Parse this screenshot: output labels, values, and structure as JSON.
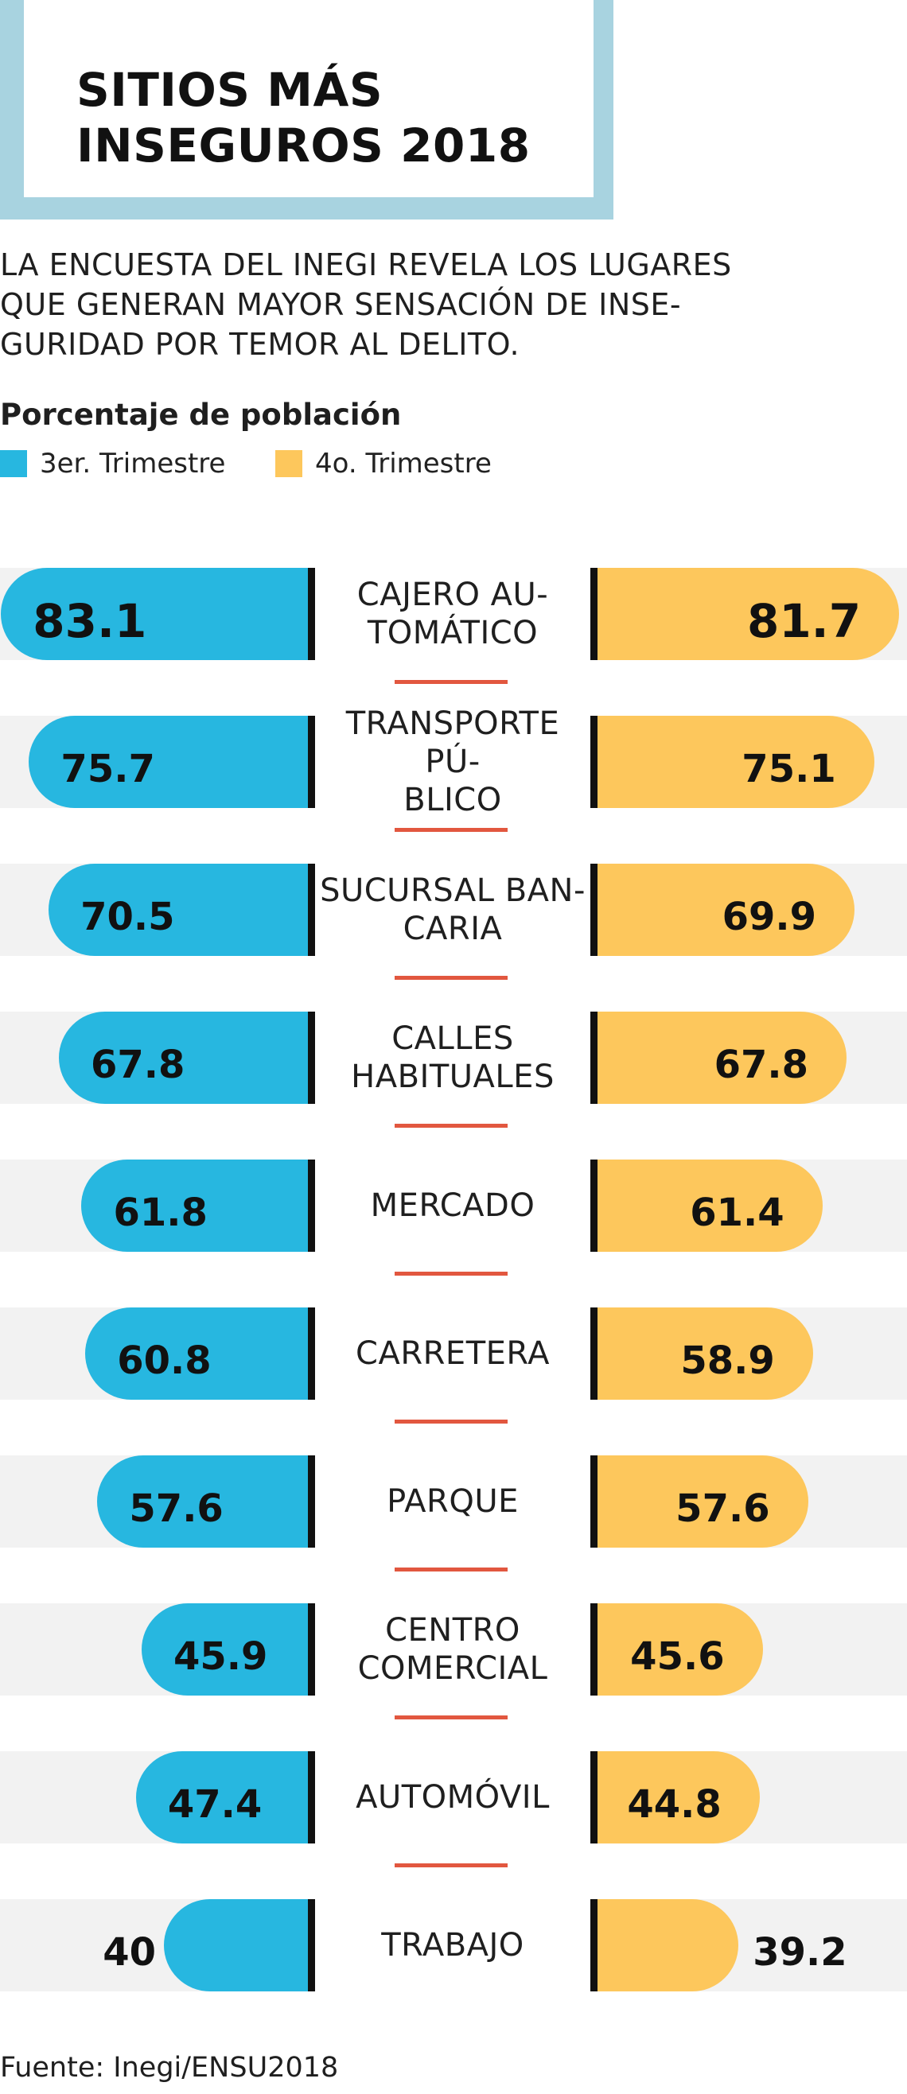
{
  "header": {
    "title": "SITIOS MÁS INSEGUROS 2018",
    "intro": "LA ENCUESTA DEL INEGI REVELA LOS LUGARES\nQUE GENERAN MAYOR SENSACIÓN DE INSE-\nGURIDAD POR TEMOR AL DELITO.",
    "subtitle": "Porcentaje de población"
  },
  "legend": [
    {
      "label": "3er. Trimestre",
      "color": "#27b7e0"
    },
    {
      "label": "4o. Trimestre",
      "color": "#fdc75c"
    }
  ],
  "colors": {
    "q3": "#27b7e0",
    "q4": "#fdc75c",
    "separator": "#e2573f",
    "track": "#f2f2f2",
    "title_frame": "#a8d3e0"
  },
  "source": "Fuente: Inegi/ENSU2018",
  "chart_data": {
    "type": "bar",
    "orientation": "horizontal, mirrored",
    "categories": [
      "CAJERO AU-\nTOMÁTICO",
      "TRANSPORTE PÚ-\nBLICO",
      "SUCURSAL BAN-\nCARIA",
      "CALLES\nHABITUALES",
      "MERCADO",
      "CARRETERA",
      "PARQUE",
      "CENTRO\nCOMERCIAL",
      "AUTOMÓVIL",
      "TRABAJO"
    ],
    "series": [
      {
        "name": "3er. Trimestre",
        "values": [
          83.1,
          75.7,
          70.5,
          67.8,
          61.8,
          60.8,
          57.6,
          45.9,
          47.4,
          40
        ]
      },
      {
        "name": "4o. Trimestre",
        "values": [
          81.7,
          75.1,
          69.9,
          67.8,
          61.4,
          58.9,
          57.6,
          45.6,
          44.8,
          39.2
        ]
      }
    ],
    "ylabel": "Porcentaje de población",
    "grid": false,
    "legend_position": "top-left"
  }
}
